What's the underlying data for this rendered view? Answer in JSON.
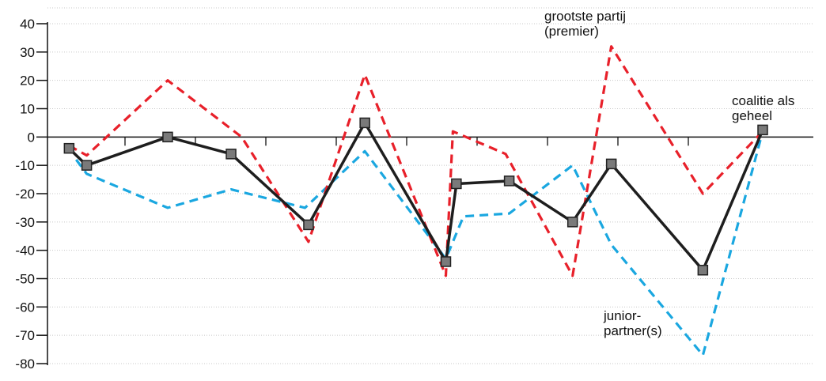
{
  "chart_data": {
    "type": "line",
    "title": "",
    "xlabel": "",
    "ylabel": "",
    "ylim": [
      -80,
      40
    ],
    "yticks": [
      40,
      30,
      20,
      10,
      0,
      -10,
      -20,
      -30,
      -40,
      -50,
      -60,
      -70,
      -80
    ],
    "grid": "horizontal-dotted",
    "x_ticks_on_zero_line": [
      1,
      2,
      3,
      4,
      5,
      6,
      7,
      8,
      9,
      10,
      11,
      12,
      13
    ],
    "series": [
      {
        "key": "largest",
        "color": "#e8202a",
        "dash": true,
        "markers": false,
        "points": [
          [
            0.15,
            -3
          ],
          [
            0.4,
            -6.5
          ],
          [
            1.55,
            20
          ],
          [
            2.6,
            0
          ],
          [
            3.55,
            -37
          ],
          [
            4.35,
            22
          ],
          [
            5.5,
            -49
          ],
          [
            5.6,
            2
          ],
          [
            6.35,
            -6
          ],
          [
            7.3,
            -49
          ],
          [
            7.85,
            32
          ],
          [
            9.15,
            -20
          ],
          [
            10.0,
            2
          ]
        ]
      },
      {
        "key": "junior",
        "color": "#1aa7e0",
        "dash": true,
        "markers": false,
        "points": [
          [
            0.25,
            -8
          ],
          [
            0.4,
            -13
          ],
          [
            1.55,
            -25
          ],
          [
            2.45,
            -18.5
          ],
          [
            3.5,
            -25
          ],
          [
            4.35,
            -5
          ],
          [
            5.5,
            -43
          ],
          [
            5.75,
            -28
          ],
          [
            6.4,
            -27
          ],
          [
            7.3,
            -10
          ],
          [
            7.85,
            -38
          ],
          [
            9.15,
            -77
          ],
          [
            10.0,
            2
          ]
        ]
      },
      {
        "key": "coalition",
        "color": "#1e1e1e",
        "dash": false,
        "markers": true,
        "marker_color": "#7a7a7a",
        "points": [
          [
            0.15,
            -4
          ],
          [
            0.4,
            -10
          ],
          [
            1.55,
            0
          ],
          [
            2.45,
            -6
          ],
          [
            3.55,
            -31
          ],
          [
            4.35,
            5
          ],
          [
            5.5,
            -44
          ],
          [
            5.65,
            -16.5
          ],
          [
            6.4,
            -15.5
          ],
          [
            7.3,
            -30
          ],
          [
            7.85,
            -9.5
          ],
          [
            9.15,
            -47
          ],
          [
            10.0,
            2.5
          ]
        ]
      }
    ],
    "annotations": [
      {
        "key": "largest",
        "lines": [
          "grootste partij",
          "(premier)"
        ]
      },
      {
        "key": "coalition",
        "lines": [
          "coalitie als",
          "geheel"
        ]
      },
      {
        "key": "junior",
        "lines": [
          "junior-",
          "partner(s)"
        ]
      }
    ]
  }
}
